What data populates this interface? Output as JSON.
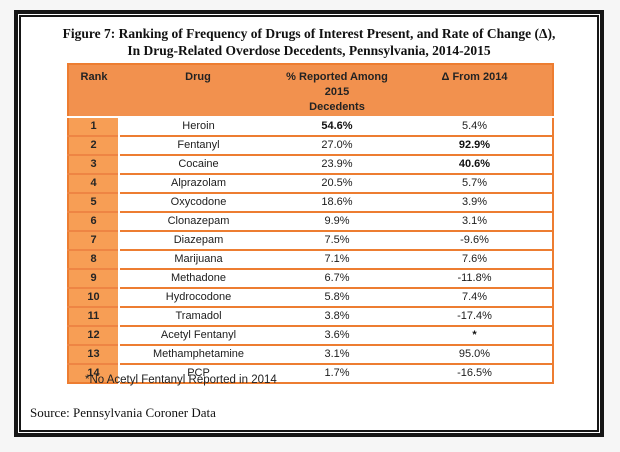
{
  "figure": {
    "title_line1": "Figure 7: Ranking of Frequency of Drugs of Interest Present, and Rate of Change (Δ),",
    "title_line2": "In Drug-Related Overdose Decedents, Pennsylvania, 2014-2015",
    "footnote": "*No Acetyl Fentanyl Reported in 2014",
    "source": "Source: Pennsylvania Coroner Data"
  },
  "table": {
    "header": {
      "col_rank": "Rank",
      "col_drug": "Drug",
      "col_pct_line1": "% Reported Among 2015",
      "col_pct_line2": "Decedents",
      "col_delta": "Δ From 2014"
    },
    "rows": [
      {
        "rank": "1",
        "drug": "Heroin",
        "pct": "54.6%",
        "delta": "5.4%",
        "pct_bold": true,
        "delta_bold": false
      },
      {
        "rank": "2",
        "drug": "Fentanyl",
        "pct": "27.0%",
        "delta": "92.9%",
        "pct_bold": false,
        "delta_bold": true
      },
      {
        "rank": "3",
        "drug": "Cocaine",
        "pct": "23.9%",
        "delta": "40.6%",
        "pct_bold": false,
        "delta_bold": true
      },
      {
        "rank": "4",
        "drug": "Alprazolam",
        "pct": "20.5%",
        "delta": "5.7%",
        "pct_bold": false,
        "delta_bold": false
      },
      {
        "rank": "5",
        "drug": "Oxycodone",
        "pct": "18.6%",
        "delta": "3.9%",
        "pct_bold": false,
        "delta_bold": false
      },
      {
        "rank": "6",
        "drug": "Clonazepam",
        "pct": "9.9%",
        "delta": "3.1%",
        "pct_bold": false,
        "delta_bold": false
      },
      {
        "rank": "7",
        "drug": "Diazepam",
        "pct": "7.5%",
        "delta": "-9.6%",
        "pct_bold": false,
        "delta_bold": false
      },
      {
        "rank": "8",
        "drug": "Marijuana",
        "pct": "7.1%",
        "delta": "7.6%",
        "pct_bold": false,
        "delta_bold": false
      },
      {
        "rank": "9",
        "drug": "Methadone",
        "pct": "6.7%",
        "delta": "-11.8%",
        "pct_bold": false,
        "delta_bold": false
      },
      {
        "rank": "10",
        "drug": "Hydrocodone",
        "pct": "5.8%",
        "delta": "7.4%",
        "pct_bold": false,
        "delta_bold": false
      },
      {
        "rank": "11",
        "drug": "Tramadol",
        "pct": "3.8%",
        "delta": "-17.4%",
        "pct_bold": false,
        "delta_bold": false
      },
      {
        "rank": "12",
        "drug": "Acetyl Fentanyl",
        "pct": "3.6%",
        "delta": "*",
        "pct_bold": false,
        "delta_bold": true
      },
      {
        "rank": "13",
        "drug": "Methamphetamine",
        "pct": "3.1%",
        "delta": "95.0%",
        "pct_bold": false,
        "delta_bold": false
      },
      {
        "rank": "14",
        "drug": "PCP",
        "pct": "1.7%",
        "delta": "-16.5%",
        "pct_bold": false,
        "delta_bold": false
      }
    ]
  },
  "colors": {
    "header_bg": "#F2914E",
    "rank_bg": "#F79E55",
    "row_border": "#ED7D31",
    "rank_row_border": "#EE8544",
    "frame_border": "#161616"
  }
}
